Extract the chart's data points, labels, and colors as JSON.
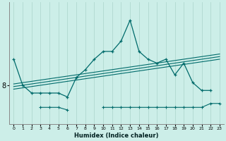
{
  "xlabel": "Humidex (Indice chaleur)",
  "ylabel": "",
  "bg_color": "#cceee8",
  "line_color": "#006b6b",
  "grid_color": "#b0d8d0",
  "x_values": [
    0,
    1,
    2,
    3,
    4,
    5,
    6,
    7,
    8,
    9,
    10,
    11,
    12,
    13,
    14,
    15,
    16,
    17,
    18,
    19,
    20,
    21,
    22,
    23
  ],
  "main_line": [
    9.0,
    8.0,
    7.7,
    7.7,
    7.7,
    7.7,
    7.55,
    8.3,
    8.6,
    9.0,
    9.3,
    9.3,
    9.7,
    10.5,
    9.3,
    9.0,
    8.85,
    9.0,
    8.4,
    8.85,
    8.1,
    7.8,
    7.8,
    null
  ],
  "upper_line": [
    8.05,
    8.1,
    8.15,
    8.2,
    8.25,
    8.3,
    8.35,
    8.4,
    8.45,
    8.5,
    8.55,
    8.6,
    8.65,
    8.7,
    8.75,
    8.8,
    8.85,
    8.9,
    8.95,
    9.0,
    9.05,
    9.1,
    9.15,
    9.2
  ],
  "mid_line": [
    7.95,
    8.0,
    8.05,
    8.1,
    8.15,
    8.2,
    8.25,
    8.3,
    8.35,
    8.4,
    8.45,
    8.5,
    8.55,
    8.6,
    8.65,
    8.7,
    8.75,
    8.8,
    8.85,
    8.9,
    8.95,
    9.0,
    9.05,
    9.1
  ],
  "lower_line": [
    7.85,
    7.9,
    7.95,
    8.0,
    8.05,
    8.1,
    8.15,
    8.2,
    8.25,
    8.3,
    8.35,
    8.4,
    8.45,
    8.5,
    8.55,
    8.6,
    8.65,
    8.7,
    8.75,
    8.8,
    8.85,
    8.9,
    8.95,
    9.0
  ],
  "bottom_line": [
    null,
    null,
    null,
    7.15,
    7.15,
    7.15,
    7.05,
    null,
    null,
    null,
    7.15,
    7.15,
    7.15,
    7.15,
    7.15,
    7.15,
    7.15,
    7.15,
    7.15,
    7.15,
    7.15,
    7.15,
    7.3,
    7.3
  ],
  "ylim": [
    6.5,
    11.2
  ],
  "xlim": [
    -0.5,
    23.5
  ],
  "ytick_labels": [
    "8"
  ],
  "ytick_vals": [
    8.0
  ]
}
